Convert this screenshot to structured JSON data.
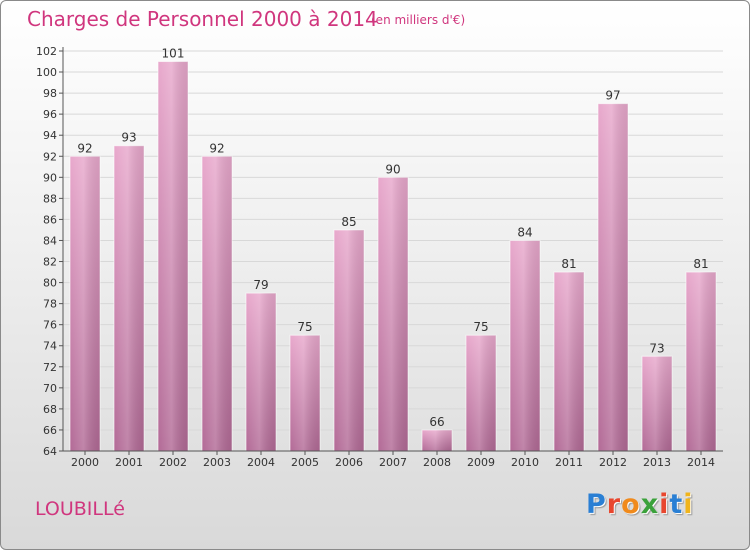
{
  "header": {
    "title": "Charges de Personnel 2000 à 2014",
    "subtitle": "(en milliers d'€)"
  },
  "footer": {
    "commune": "LOUBILLé",
    "logo_text": "Proxiti",
    "logo_colors": [
      "#2a7fd4",
      "#e8462e",
      "#f08a1c",
      "#3aa13a",
      "#e8462e",
      "#2a7fd4",
      "#f0b41c"
    ]
  },
  "colors": {
    "accent": "#d0367e",
    "bar_top": "#e8a8cc",
    "bar_bottom": "#b26a96",
    "axis": "#555555"
  },
  "chart_data": {
    "type": "bar",
    "title": "Charges de Personnel 2000 à 2014",
    "subtitle": "(en milliers d'€)",
    "xlabel": "",
    "ylabel": "",
    "categories": [
      "2000",
      "2001",
      "2002",
      "2003",
      "2004",
      "2005",
      "2006",
      "2007",
      "2008",
      "2009",
      "2010",
      "2011",
      "2012",
      "2013",
      "2014"
    ],
    "values": [
      92,
      93,
      101,
      92,
      79,
      75,
      85,
      90,
      66,
      75,
      84,
      81,
      97,
      73,
      81
    ],
    "ylim": [
      64,
      102
    ],
    "ytick_step": 2,
    "grid": true,
    "legend": "none",
    "data_labels": true
  }
}
